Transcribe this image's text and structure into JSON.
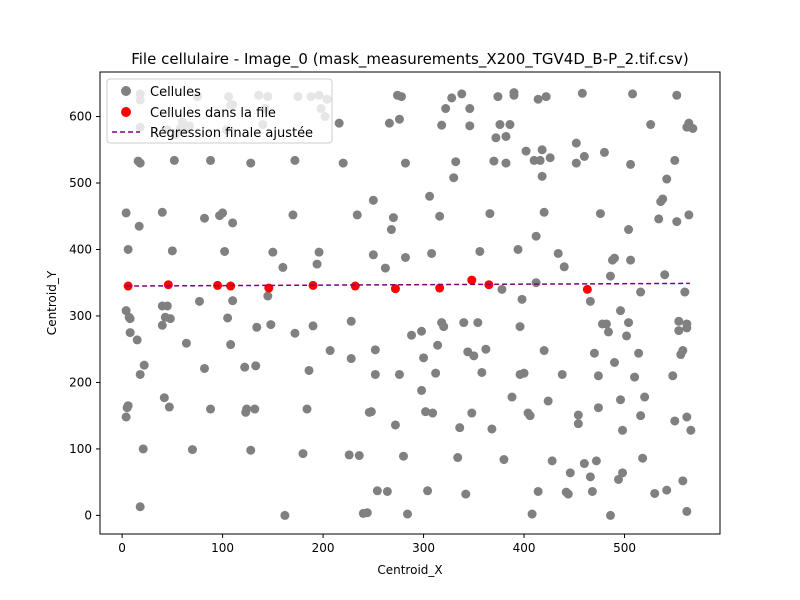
{
  "chart_data": {
    "type": "scatter",
    "title": "File cellulaire - Image_0 (mask_measurements_X200_TGV4D_B-P_2.tif.csv)",
    "xlabel": "Centroid_X",
    "ylabel": "Centroid_Y",
    "xlim": [
      -22,
      595
    ],
    "ylim": [
      667,
      -28
    ],
    "y_inverted": true,
    "x_ticks": [
      0,
      100,
      200,
      300,
      400,
      500
    ],
    "y_ticks": [
      0,
      100,
      200,
      300,
      400,
      500,
      600
    ],
    "grid": false,
    "legend_position": "top-left",
    "colors": {
      "cells": "#808080",
      "file_cells": "#ff0000",
      "regression": "#800080"
    },
    "series": [
      {
        "name": "Cellules",
        "kind": "points",
        "points": [
          [
            4,
            148
          ],
          [
            5,
            162
          ],
          [
            6,
            165
          ],
          [
            4,
            308
          ],
          [
            7,
            298
          ],
          [
            8,
            275
          ],
          [
            8,
            296
          ],
          [
            4,
            455
          ],
          [
            6,
            400
          ],
          [
            15,
            264
          ],
          [
            18,
            212
          ],
          [
            22,
            226
          ],
          [
            21,
            100
          ],
          [
            18,
            13
          ],
          [
            17,
            435
          ],
          [
            16,
            533
          ],
          [
            18,
            530
          ],
          [
            18,
            584
          ],
          [
            18,
            625
          ],
          [
            18,
            634
          ],
          [
            40,
            286
          ],
          [
            42,
            177
          ],
          [
            47,
            163
          ],
          [
            43,
            298
          ],
          [
            48,
            296
          ],
          [
            40,
            315
          ],
          [
            45,
            315
          ],
          [
            40,
            456
          ],
          [
            50,
            398
          ],
          [
            52,
            534
          ],
          [
            45,
            580
          ],
          [
            53,
            572
          ],
          [
            58,
            582
          ],
          [
            60,
            592
          ],
          [
            62,
            580
          ],
          [
            67,
            586
          ],
          [
            64,
            259
          ],
          [
            70,
            99
          ],
          [
            77,
            322
          ],
          [
            82,
            221
          ],
          [
            82,
            447
          ],
          [
            88,
            160
          ],
          [
            88,
            534
          ],
          [
            75,
            630
          ],
          [
            97,
            451
          ],
          [
            100,
            455
          ],
          [
            104,
            580
          ],
          [
            102,
            397
          ],
          [
            106,
            630
          ],
          [
            108,
            617
          ],
          [
            110,
            618
          ],
          [
            110,
            440
          ],
          [
            105,
            297
          ],
          [
            108,
            257
          ],
          [
            110,
            323
          ],
          [
            122,
            223
          ],
          [
            123,
            155
          ],
          [
            124,
            160
          ],
          [
            128,
            530
          ],
          [
            128,
            98
          ],
          [
            132,
            160
          ],
          [
            133,
            225
          ],
          [
            134,
            283
          ],
          [
            136,
            632
          ],
          [
            140,
            588
          ],
          [
            142,
            612
          ],
          [
            145,
            630
          ],
          [
            145,
            330
          ],
          [
            148,
            287
          ],
          [
            150,
            396
          ],
          [
            160,
            373
          ],
          [
            162,
            0
          ],
          [
            170,
            452
          ],
          [
            172,
            274
          ],
          [
            172,
            534
          ],
          [
            175,
            630
          ],
          [
            180,
            93
          ],
          [
            184,
            160
          ],
          [
            186,
            218
          ],
          [
            190,
            285
          ],
          [
            194,
            378
          ],
          [
            196,
            396
          ],
          [
            188,
            630
          ],
          [
            196,
            632
          ],
          [
            198,
            612
          ],
          [
            202,
            600
          ],
          [
            204,
            626
          ],
          [
            207,
            248
          ],
          [
            216,
            590
          ],
          [
            220,
            530
          ],
          [
            226,
            91
          ],
          [
            228,
            236
          ],
          [
            228,
            292
          ],
          [
            234,
            452
          ],
          [
            236,
            90
          ],
          [
            240,
            3
          ],
          [
            244,
            4
          ],
          [
            246,
            155
          ],
          [
            248,
            156
          ],
          [
            250,
            392
          ],
          [
            250,
            474
          ],
          [
            252,
            212
          ],
          [
            254,
            37
          ],
          [
            252,
            249
          ],
          [
            262,
            372
          ],
          [
            264,
            36
          ],
          [
            266,
            590
          ],
          [
            268,
            430
          ],
          [
            270,
            448
          ],
          [
            272,
            136
          ],
          [
            274,
            632
          ],
          [
            276,
            212
          ],
          [
            276,
            596
          ],
          [
            278,
            630
          ],
          [
            280,
            89
          ],
          [
            282,
            530
          ],
          [
            284,
            2
          ],
          [
            288,
            271
          ],
          [
            282,
            388
          ],
          [
            298,
            188
          ],
          [
            298,
            277
          ],
          [
            300,
            237
          ],
          [
            302,
            156
          ],
          [
            304,
            37
          ],
          [
            306,
            480
          ],
          [
            308,
            394
          ],
          [
            309,
            154
          ],
          [
            312,
            214
          ],
          [
            314,
            256
          ],
          [
            316,
            450
          ],
          [
            318,
            290
          ],
          [
            320,
            284
          ],
          [
            318,
            587
          ],
          [
            322,
            612
          ],
          [
            328,
            628
          ],
          [
            330,
            508
          ],
          [
            332,
            532
          ],
          [
            338,
            634
          ],
          [
            334,
            87
          ],
          [
            336,
            132
          ],
          [
            340,
            290
          ],
          [
            342,
            32
          ],
          [
            344,
            246
          ],
          [
            346,
            612
          ],
          [
            346,
            586
          ],
          [
            348,
            154
          ],
          [
            350,
            240
          ],
          [
            354,
            290
          ],
          [
            356,
            397
          ],
          [
            358,
            215
          ],
          [
            362,
            250
          ],
          [
            366,
            454
          ],
          [
            368,
            130
          ],
          [
            370,
            533
          ],
          [
            372,
            568
          ],
          [
            374,
            630
          ],
          [
            376,
            588
          ],
          [
            378,
            340
          ],
          [
            380,
            84
          ],
          [
            382,
            530
          ],
          [
            382,
            570
          ],
          [
            386,
            588
          ],
          [
            388,
            178
          ],
          [
            390,
            636
          ],
          [
            390,
            632
          ],
          [
            394,
            400
          ],
          [
            396,
            284
          ],
          [
            396,
            212
          ],
          [
            398,
            325
          ],
          [
            400,
            214
          ],
          [
            402,
            548
          ],
          [
            404,
            154
          ],
          [
            406,
            150
          ],
          [
            408,
            2
          ],
          [
            410,
            534
          ],
          [
            412,
            350
          ],
          [
            412,
            420
          ],
          [
            414,
            36
          ],
          [
            414,
            626
          ],
          [
            416,
            534
          ],
          [
            418,
            510
          ],
          [
            418,
            550
          ],
          [
            420,
            456
          ],
          [
            420,
            248
          ],
          [
            422,
            630
          ],
          [
            424,
            172
          ],
          [
            426,
            538
          ],
          [
            428,
            82
          ],
          [
            434,
            394
          ],
          [
            438,
            212
          ],
          [
            440,
            374
          ],
          [
            442,
            35
          ],
          [
            444,
            32
          ],
          [
            446,
            64
          ],
          [
            452,
            560
          ],
          [
            452,
            530
          ],
          [
            454,
            151
          ],
          [
            454,
            138
          ],
          [
            458,
            635
          ],
          [
            460,
            540
          ],
          [
            460,
            78
          ],
          [
            466,
            58
          ],
          [
            466,
            322
          ],
          [
            468,
            36
          ],
          [
            470,
            244
          ],
          [
            472,
            82
          ],
          [
            474,
            162
          ],
          [
            474,
            210
          ],
          [
            476,
            454
          ],
          [
            478,
            288
          ],
          [
            480,
            546
          ],
          [
            482,
            288
          ],
          [
            484,
            276
          ],
          [
            486,
            0
          ],
          [
            486,
            360
          ],
          [
            488,
            384
          ],
          [
            490,
            387
          ],
          [
            490,
            230
          ],
          [
            494,
            54
          ],
          [
            496,
            174
          ],
          [
            496,
            308
          ],
          [
            498,
            128
          ],
          [
            498,
            64
          ],
          [
            502,
            270
          ],
          [
            504,
            290
          ],
          [
            504,
            430
          ],
          [
            506,
            528
          ],
          [
            506,
            384
          ],
          [
            508,
            634
          ],
          [
            510,
            208
          ],
          [
            514,
            244
          ],
          [
            516,
            336
          ],
          [
            516,
            150
          ],
          [
            518,
            86
          ],
          [
            520,
            178
          ],
          [
            526,
            588
          ],
          [
            530,
            33
          ],
          [
            534,
            446
          ],
          [
            536,
            472
          ],
          [
            538,
            476
          ],
          [
            540,
            362
          ],
          [
            542,
            506
          ],
          [
            548,
            210
          ],
          [
            550,
            142
          ],
          [
            550,
            534
          ],
          [
            552,
            442
          ],
          [
            554,
            292
          ],
          [
            554,
            278
          ],
          [
            556,
            242
          ],
          [
            558,
            248
          ],
          [
            558,
            52
          ],
          [
            560,
            336
          ],
          [
            562,
            148
          ],
          [
            562,
            282
          ],
          [
            562,
            288
          ],
          [
            562,
            6
          ],
          [
            564,
            452
          ],
          [
            566,
            128
          ],
          [
            562,
            584
          ],
          [
            564,
            590
          ],
          [
            568,
            582
          ],
          [
            552,
            632
          ],
          [
            542,
            38
          ]
        ]
      },
      {
        "name": "Cellules dans la file",
        "kind": "points",
        "points": [
          [
            6,
            345
          ],
          [
            46,
            347
          ],
          [
            95,
            346
          ],
          [
            108,
            345
          ],
          [
            146,
            342
          ],
          [
            190,
            346
          ],
          [
            232,
            345
          ],
          [
            272,
            341
          ],
          [
            316,
            342
          ],
          [
            348,
            354
          ],
          [
            365,
            347
          ],
          [
            463,
            340
          ]
        ]
      },
      {
        "name": "Régression finale ajustée",
        "kind": "line",
        "style": "dashed",
        "points": [
          [
            4,
            345
          ],
          [
            565,
            349
          ]
        ]
      }
    ]
  }
}
